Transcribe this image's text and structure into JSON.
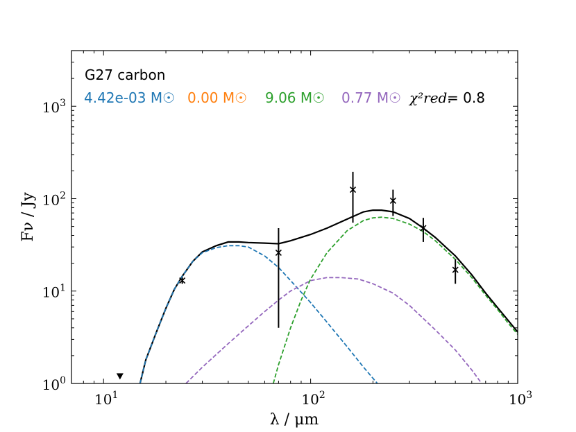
{
  "colors": {
    "total": "#000000",
    "c1": "#1f77b4",
    "c2": "#ff7f0e",
    "c3": "#2ca02c",
    "c4": "#9467bd"
  },
  "chart_data": {
    "type": "line",
    "title": "G27 carbon",
    "xlabel": "λ / μm",
    "ylabel": "Fν / Jy",
    "xscale": "log",
    "yscale": "log",
    "xlim": [
      7,
      1000
    ],
    "ylim": [
      1,
      4000
    ],
    "x_ticks": [
      {
        "value": 10,
        "base": "10",
        "exp": "1"
      },
      {
        "value": 100,
        "base": "10",
        "exp": "2"
      },
      {
        "value": 1000,
        "base": "10",
        "exp": "3"
      }
    ],
    "y_ticks": [
      {
        "value": 1,
        "base": "10",
        "exp": "0"
      },
      {
        "value": 10,
        "base": "10",
        "exp": "1"
      },
      {
        "value": 100,
        "base": "10",
        "exp": "2"
      },
      {
        "value": 1000,
        "base": "10",
        "exp": "3"
      }
    ],
    "annotations": {
      "masses": [
        "4.42e-03 M☉",
        "0.00 M☉",
        "9.06 M☉",
        "0.77 M☉"
      ],
      "chi2_label": "χ²red.",
      "chi2_value": "= 0.8"
    },
    "series": [
      {
        "color_key": "total",
        "style": "solid",
        "points": [
          [
            15.0,
            1.0
          ],
          [
            16,
            1.8
          ],
          [
            18,
            3.6
          ],
          [
            20,
            6.5
          ],
          [
            22,
            10.5
          ],
          [
            24,
            14.5
          ],
          [
            27,
            21
          ],
          [
            30,
            26.5
          ],
          [
            35,
            31
          ],
          [
            40,
            34
          ],
          [
            45,
            34
          ],
          [
            50,
            33.5
          ],
          [
            60,
            33
          ],
          [
            70,
            32.5
          ],
          [
            80,
            35
          ],
          [
            100,
            41
          ],
          [
            120,
            48
          ],
          [
            150,
            60
          ],
          [
            180,
            72
          ],
          [
            200,
            75
          ],
          [
            220,
            75
          ],
          [
            250,
            72
          ],
          [
            300,
            61
          ],
          [
            350,
            48
          ],
          [
            400,
            38
          ],
          [
            500,
            24
          ],
          [
            600,
            15
          ],
          [
            700,
            9.5
          ],
          [
            800,
            6.6
          ],
          [
            900,
            4.8
          ],
          [
            1000,
            3.6
          ]
        ]
      },
      {
        "color_key": "c1",
        "style": "dashed",
        "points": [
          [
            15.0,
            1.0
          ],
          [
            16,
            1.8
          ],
          [
            18,
            3.6
          ],
          [
            20,
            6.5
          ],
          [
            22,
            10.5
          ],
          [
            24,
            14.5
          ],
          [
            27,
            21
          ],
          [
            30,
            26
          ],
          [
            35,
            29.5
          ],
          [
            40,
            31
          ],
          [
            45,
            31
          ],
          [
            50,
            30
          ],
          [
            60,
            24
          ],
          [
            70,
            18
          ],
          [
            80,
            13
          ],
          [
            100,
            7.5
          ],
          [
            120,
            4.6
          ],
          [
            150,
            2.5
          ],
          [
            180,
            1.5
          ],
          [
            210,
            1.0
          ]
        ]
      },
      {
        "color_key": "c3",
        "style": "dashed",
        "points": [
          [
            66,
            1.0
          ],
          [
            70,
            1.6
          ],
          [
            80,
            4
          ],
          [
            90,
            8
          ],
          [
            100,
            13.5
          ],
          [
            120,
            26
          ],
          [
            150,
            45
          ],
          [
            180,
            58
          ],
          [
            200,
            62
          ],
          [
            220,
            63
          ],
          [
            250,
            61
          ],
          [
            300,
            53
          ],
          [
            350,
            44
          ],
          [
            400,
            35
          ],
          [
            500,
            22
          ],
          [
            600,
            14
          ],
          [
            700,
            9
          ],
          [
            800,
            6.3
          ],
          [
            900,
            4.5
          ],
          [
            1000,
            3.4
          ]
        ]
      },
      {
        "color_key": "c4",
        "style": "dashed",
        "points": [
          [
            25,
            1.0
          ],
          [
            30,
            1.5
          ],
          [
            40,
            2.7
          ],
          [
            50,
            4.2
          ],
          [
            60,
            6
          ],
          [
            70,
            8
          ],
          [
            80,
            10
          ],
          [
            100,
            13
          ],
          [
            120,
            14
          ],
          [
            140,
            14
          ],
          [
            170,
            13.5
          ],
          [
            200,
            12
          ],
          [
            250,
            9.5
          ],
          [
            300,
            7
          ],
          [
            400,
            3.8
          ],
          [
            500,
            2.3
          ],
          [
            600,
            1.4
          ],
          [
            670,
            1.0
          ]
        ]
      }
    ],
    "data_points": [
      {
        "x": 24,
        "y": 13,
        "yerr_low": 12,
        "yerr_high": 14
      },
      {
        "x": 70,
        "y": 26,
        "yerr_low": 4,
        "yerr_high": 48
      },
      {
        "x": 160,
        "y": 125,
        "yerr_low": 55,
        "yerr_high": 195
      },
      {
        "x": 250,
        "y": 95,
        "yerr_low": 65,
        "yerr_high": 125
      },
      {
        "x": 350,
        "y": 48,
        "yerr_low": 34,
        "yerr_high": 62
      },
      {
        "x": 500,
        "y": 17,
        "yerr_low": 12,
        "yerr_high": 22
      }
    ],
    "upper_limits": [
      {
        "x": 12,
        "y": 1.18
      }
    ]
  }
}
